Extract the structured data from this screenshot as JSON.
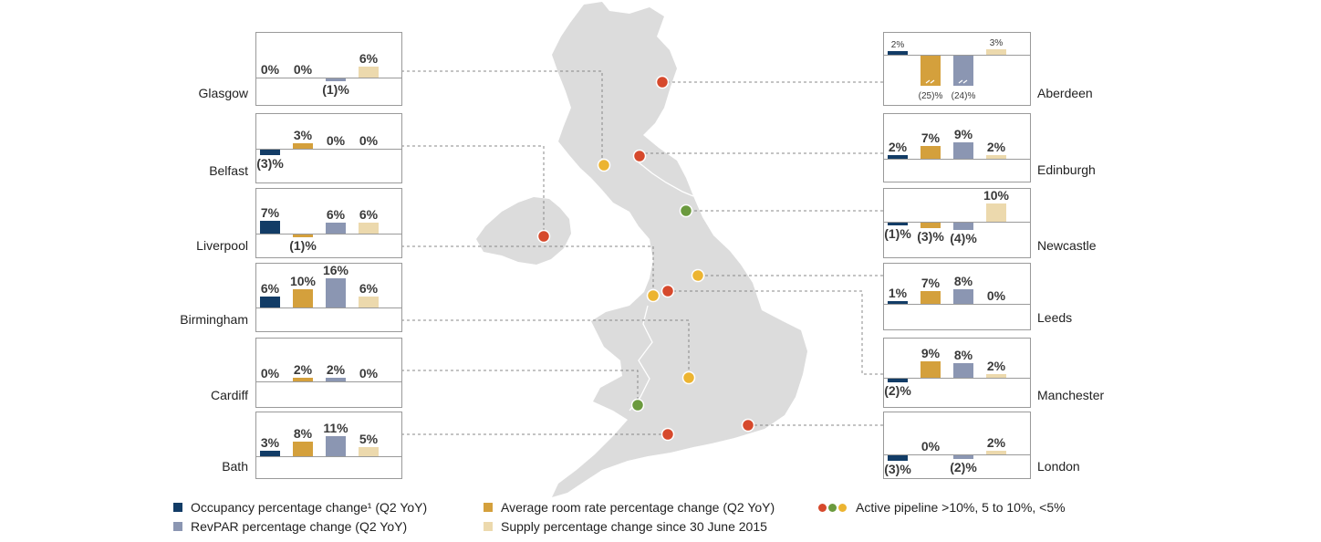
{
  "colors": {
    "occupancy": "#123c66",
    "adr": "#d4a03c",
    "revpar": "#8b96b2",
    "supply": "#ecd9ad",
    "map": "#dcdcdc",
    "pipeline_high": "#d6492c",
    "pipeline_mid": "#6b9a3e",
    "pipeline_low": "#ecb431",
    "connector": "#888888"
  },
  "legend": {
    "occupancy": "Occupancy percentage change¹ (Q2 YoY)",
    "adr": "Average room rate percentage change (Q2 YoY)",
    "pipeline": "Active pipeline >10%, 5 to 10%, <5%",
    "revpar": "RevPAR percentage change (Q2 YoY)",
    "supply": "Supply percentage change since 30 June 2015"
  },
  "chart_data": {
    "type": "bar",
    "series_order": [
      "occupancy",
      "adr",
      "revpar",
      "supply"
    ],
    "cities": [
      {
        "name": "Glasgow",
        "values": [
          0,
          0,
          -1,
          6
        ],
        "labels": [
          "0%",
          "0%",
          "(1)%",
          "6%"
        ],
        "pipeline": "low"
      },
      {
        "name": "Belfast",
        "values": [
          -3,
          3,
          0,
          0
        ],
        "labels": [
          "(3)%",
          "3%",
          "0%",
          "0%"
        ],
        "pipeline": "high"
      },
      {
        "name": "Liverpool",
        "values": [
          7,
          -1,
          6,
          6
        ],
        "labels": [
          "7%",
          "(1)%",
          "6%",
          "6%"
        ],
        "pipeline": "low"
      },
      {
        "name": "Birmingham",
        "values": [
          6,
          10,
          16,
          6
        ],
        "labels": [
          "6%",
          "10%",
          "16%",
          "6%"
        ],
        "pipeline": "low"
      },
      {
        "name": "Cardiff",
        "values": [
          0,
          2,
          2,
          0
        ],
        "labels": [
          "0%",
          "2%",
          "2%",
          "0%"
        ],
        "pipeline": "mid"
      },
      {
        "name": "Bath",
        "values": [
          3,
          8,
          11,
          5
        ],
        "labels": [
          "3%",
          "8%",
          "11%",
          "5%"
        ],
        "pipeline": "high"
      },
      {
        "name": "Aberdeen",
        "values": [
          2,
          -25,
          -24,
          3
        ],
        "labels": [
          "2%",
          "(25)%",
          "(24)%",
          "3%"
        ],
        "pipeline": "high",
        "broken_axis": true
      },
      {
        "name": "Edinburgh",
        "values": [
          2,
          7,
          9,
          2
        ],
        "labels": [
          "2%",
          "7%",
          "9%",
          "2%"
        ],
        "pipeline": "high"
      },
      {
        "name": "Newcastle",
        "values": [
          -1,
          -3,
          -4,
          10
        ],
        "labels": [
          "(1)%",
          "(3)%",
          "(4)%",
          "10%"
        ],
        "pipeline": "mid"
      },
      {
        "name": "Leeds",
        "values": [
          1,
          7,
          8,
          0
        ],
        "labels": [
          "1%",
          "7%",
          "8%",
          "0%"
        ],
        "pipeline": "low"
      },
      {
        "name": "Manchester",
        "values": [
          -2,
          9,
          8,
          2
        ],
        "labels": [
          "(2)%",
          "9%",
          "8%",
          "2%"
        ],
        "pipeline": "high"
      },
      {
        "name": "London",
        "values": [
          -3,
          0,
          -2,
          2
        ],
        "labels": [
          "(3)%",
          "0%",
          "(2)%",
          "2%"
        ],
        "pipeline": "high"
      }
    ]
  }
}
